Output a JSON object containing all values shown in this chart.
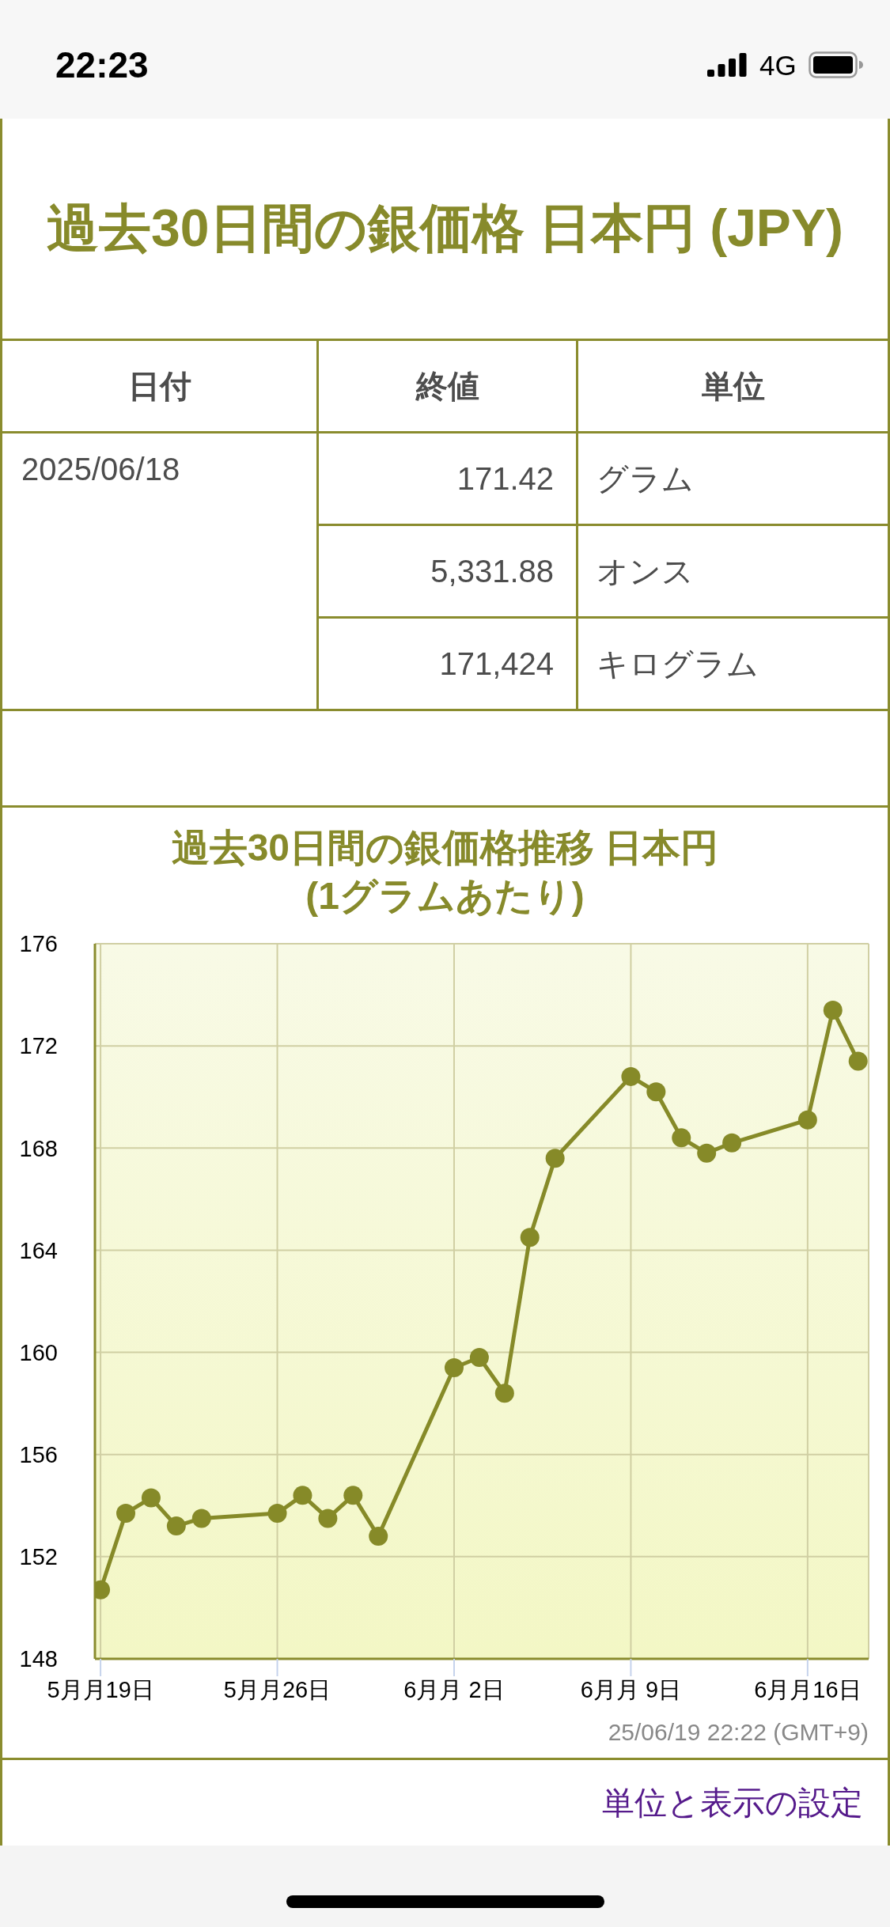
{
  "chart_data": [
    {
      "type": "other",
      "annotations": [
        "22:23",
        "4G"
      ]
    },
    {
      "type": "other",
      "title": "過去30日間の銀価格 日本円 (JPY)",
      "annotations": [
        "日付",
        "終値",
        "単位",
        "2025/06/18",
        "171.42",
        "グラム",
        "5,331.88",
        "オンス",
        "171,424",
        "キログラム"
      ]
    },
    {
      "type": "line",
      "title": "過去30日間の銀価格推移 日本円\n(1グラムあたり)",
      "x": [
        "2025-05-19",
        "2025-05-20",
        "2025-05-21",
        "2025-05-22",
        "2025-05-23",
        "2025-05-26",
        "2025-05-27",
        "2025-05-28",
        "2025-05-29",
        "2025-05-30",
        "2025-06-02",
        "2025-06-03",
        "2025-06-04",
        "2025-06-05",
        "2025-06-06",
        "2025-06-09",
        "2025-06-10",
        "2025-06-11",
        "2025-06-12",
        "2025-06-13",
        "2025-06-16",
        "2025-06-17",
        "2025-06-18"
      ],
      "values": [
        150.7,
        153.7,
        154.3,
        153.2,
        153.5,
        153.7,
        154.4,
        153.5,
        154.4,
        152.8,
        159.4,
        159.8,
        158.4,
        164.5,
        167.6,
        170.8,
        170.2,
        168.4,
        167.8,
        168.2,
        169.1,
        173.4,
        171.4
      ],
      "color": "#868a28",
      "marker": "circle",
      "grid": true,
      "xlim": [
        "2025-05-18T18:40",
        "2025-06-18T10:00"
      ],
      "xticks": [
        {
          "value": "2025-05-19",
          "label": "5月月19日"
        },
        {
          "value": "2025-05-26",
          "label": "5月月26日"
        },
        {
          "value": "2025-06-02",
          "label": "6月月 2日"
        },
        {
          "value": "2025-06-09",
          "label": "6月月 9日"
        },
        {
          "value": "2025-06-16",
          "label": "6月月16日"
        }
      ],
      "ylim": [
        148,
        176
      ],
      "yticks": [
        148,
        152,
        156,
        160,
        164,
        168,
        172,
        176
      ],
      "annotations": [
        "25/06/19 22:22 (GMT+9)",
        "単位と表示の設定"
      ]
    }
  ]
}
